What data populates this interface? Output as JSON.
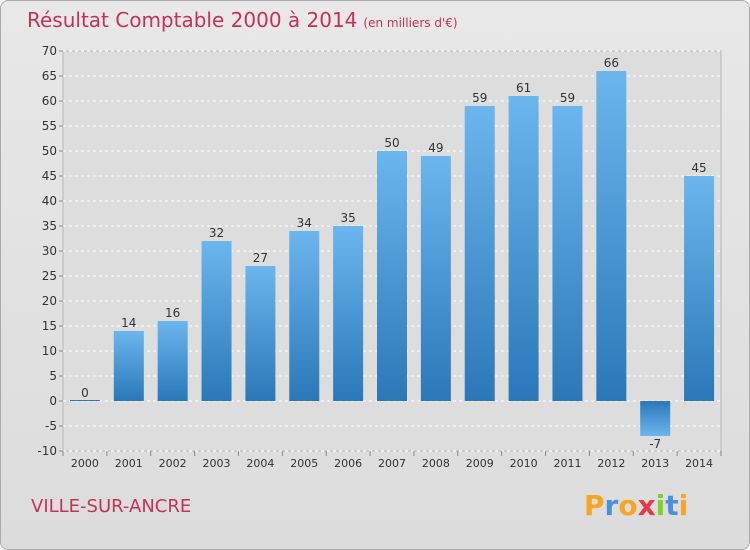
{
  "title": {
    "main": "Résultat Comptable 2000 à 2014",
    "sub": "(en milliers d'€)"
  },
  "commune": "VILLE-SUR-ANCRE",
  "logo": {
    "letters": [
      "P",
      "r",
      "o",
      "x",
      "i",
      "t",
      "i"
    ],
    "colors": [
      "#f5a623",
      "#4a90e2",
      "#f5a623",
      "#e63946",
      "#7ed321",
      "#4a90e2",
      "#f5a623"
    ]
  },
  "colors": {
    "bar_top": "#6cb6ee",
    "bar_bottom": "#2a78b8",
    "text": "#333333",
    "grid": "#ffffff",
    "accent": "#c4325a"
  },
  "chart_data": {
    "type": "bar",
    "title": "Résultat Comptable 2000 à 2014",
    "subtitle": "(en milliers d'€)",
    "xlabel": "",
    "ylabel": "",
    "ylim": [
      -10,
      70
    ],
    "yticks": [
      -10,
      -5,
      0,
      5,
      10,
      15,
      20,
      25,
      30,
      35,
      40,
      45,
      50,
      55,
      60,
      65,
      70
    ],
    "grid": true,
    "categories": [
      "2000",
      "2001",
      "2002",
      "2003",
      "2004",
      "2005",
      "2006",
      "2007",
      "2008",
      "2009",
      "2010",
      "2011",
      "2012",
      "2013",
      "2014"
    ],
    "values": [
      0,
      14,
      16,
      32,
      27,
      34,
      35,
      50,
      49,
      59,
      61,
      59,
      66,
      -7,
      45
    ]
  }
}
